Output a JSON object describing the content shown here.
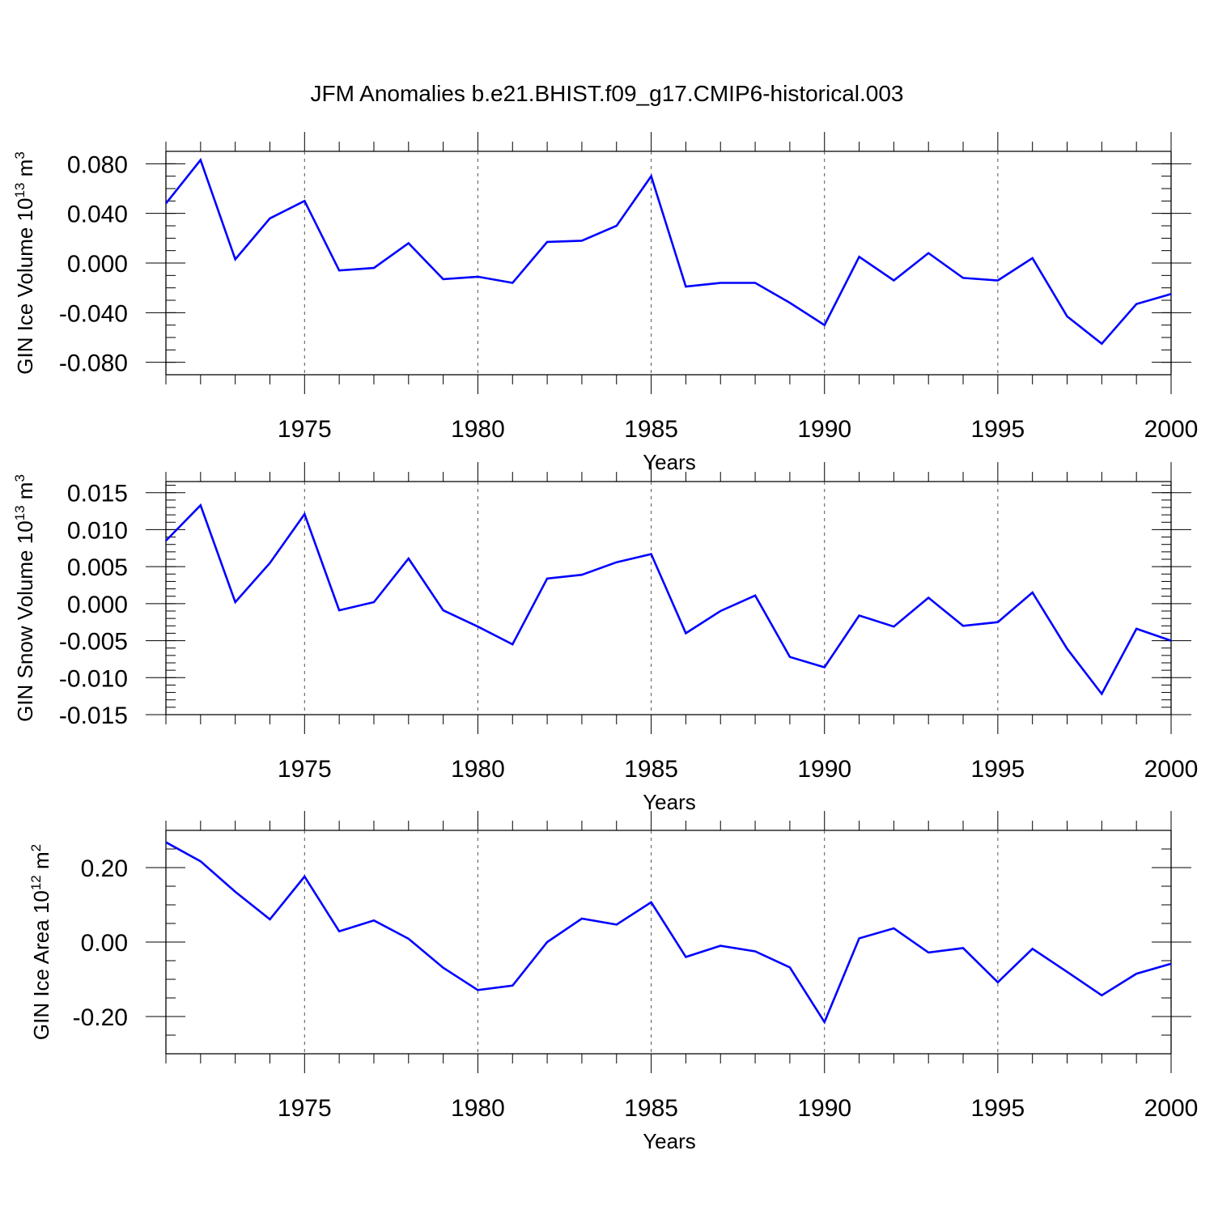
{
  "title": "JFM Anomalies b.e21.BHIST.f09_g17.CMIP6-historical.003",
  "chart_data": [
    {
      "type": "line",
      "xlabel": "Years",
      "ylabel": "GIN Ice Volume 10",
      "ylabel_exp": "13",
      "ylabel_unit": " m",
      "ylabel_unit_exp": "3",
      "xlim": [
        1971,
        2000
      ],
      "ylim": [
        -0.09,
        0.09
      ],
      "x_ticks": [
        1975,
        1980,
        1985,
        1990,
        1995,
        2000
      ],
      "y_ticks": [
        -0.08,
        -0.04,
        0.0,
        0.04,
        0.08
      ],
      "y_tick_labels": [
        "-0.080",
        "-0.040",
        "0.000",
        "0.040",
        "0.080"
      ],
      "y_minor_step": 0.01,
      "color": "#0000ff",
      "x": [
        1971,
        1972,
        1973,
        1974,
        1975,
        1976,
        1977,
        1978,
        1979,
        1980,
        1981,
        1982,
        1983,
        1984,
        1985,
        1986,
        1987,
        1988,
        1989,
        1990,
        1991,
        1992,
        1993,
        1994,
        1995,
        1996,
        1997,
        1998,
        1999,
        2000
      ],
      "y": [
        0.048,
        0.083,
        0.003,
        0.036,
        0.05,
        -0.006,
        -0.004,
        0.016,
        -0.013,
        -0.011,
        -0.016,
        0.017,
        0.018,
        0.03,
        0.07,
        -0.019,
        -0.016,
        -0.016,
        -0.032,
        -0.05,
        0.005,
        -0.014,
        0.008,
        -0.012,
        -0.014,
        0.004,
        -0.043,
        -0.065,
        -0.033,
        -0.025
      ]
    },
    {
      "type": "line",
      "xlabel": "Years",
      "ylabel": "GIN Snow Volume 10",
      "ylabel_exp": "13",
      "ylabel_unit": " m",
      "ylabel_unit_exp": "3",
      "xlim": [
        1971,
        2000
      ],
      "ylim": [
        -0.015,
        0.0165
      ],
      "x_ticks": [
        1975,
        1980,
        1985,
        1990,
        1995,
        2000
      ],
      "y_ticks": [
        -0.015,
        -0.01,
        -0.005,
        0.0,
        0.005,
        0.01,
        0.015
      ],
      "y_tick_labels": [
        "-0.015",
        "-0.010",
        "-0.005",
        "0.000",
        "0.005",
        "0.010",
        "0.015"
      ],
      "y_minor_step": 0.001,
      "color": "#0000ff",
      "x": [
        1971,
        1972,
        1973,
        1974,
        1975,
        1976,
        1977,
        1978,
        1979,
        1980,
        1981,
        1982,
        1983,
        1984,
        1985,
        1986,
        1987,
        1988,
        1989,
        1990,
        1991,
        1992,
        1993,
        1994,
        1995,
        1996,
        1997,
        1998,
        1999,
        2000
      ],
      "y": [
        0.0085,
        0.0133,
        0.0002,
        0.0055,
        0.0121,
        -0.0009,
        0.0002,
        0.0061,
        -0.0009,
        -0.0031,
        -0.0055,
        0.0034,
        0.0039,
        0.0056,
        0.0067,
        -0.004,
        -0.001,
        0.0011,
        -0.0072,
        -0.0086,
        -0.0016,
        -0.0031,
        0.0008,
        -0.003,
        -0.0025,
        0.0015,
        -0.0061,
        -0.0122,
        -0.0034,
        -0.005
      ]
    },
    {
      "type": "line",
      "xlabel": "Years",
      "ylabel": "GIN Ice Area 10",
      "ylabel_exp": "12",
      "ylabel_unit": " m",
      "ylabel_unit_exp": "2",
      "xlim": [
        1971,
        2000
      ],
      "ylim": [
        -0.3,
        0.3
      ],
      "x_ticks": [
        1975,
        1980,
        1985,
        1990,
        1995,
        2000
      ],
      "y_ticks": [
        -0.2,
        0.0,
        0.2
      ],
      "y_tick_labels": [
        "-0.20",
        "0.00",
        "0.20"
      ],
      "y_minor_step": 0.05,
      "color": "#0000ff",
      "x": [
        1971,
        1972,
        1973,
        1974,
        1975,
        1976,
        1977,
        1978,
        1979,
        1980,
        1981,
        1982,
        1983,
        1984,
        1985,
        1986,
        1987,
        1988,
        1989,
        1990,
        1991,
        1992,
        1993,
        1994,
        1995,
        1996,
        1997,
        1998,
        1999,
        2000
      ],
      "y": [
        0.268,
        0.217,
        0.135,
        0.061,
        0.176,
        0.029,
        0.058,
        0.009,
        -0.069,
        -0.129,
        -0.117,
        0.0,
        0.063,
        0.047,
        0.107,
        -0.04,
        -0.01,
        -0.025,
        -0.068,
        -0.215,
        0.01,
        0.037,
        -0.028,
        -0.016,
        -0.108,
        -0.018,
        -0.08,
        -0.143,
        -0.085,
        -0.058
      ]
    }
  ]
}
